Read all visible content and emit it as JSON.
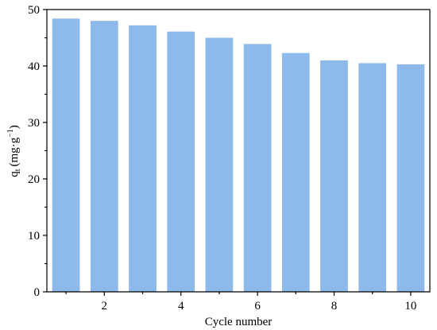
{
  "chart_data": {
    "type": "bar",
    "x": [
      1,
      2,
      3,
      4,
      5,
      6,
      7,
      8,
      9,
      10
    ],
    "values": [
      48.4,
      48.0,
      47.2,
      46.1,
      45.0,
      43.9,
      42.3,
      41.0,
      40.5,
      40.3
    ],
    "xticks": [
      2,
      4,
      6,
      8,
      10
    ],
    "xlim": [
      0.5,
      10.5
    ],
    "yticks": [
      0,
      10,
      20,
      30,
      40,
      50
    ],
    "ylim": [
      0,
      50
    ],
    "xlabel": "Cycle number",
    "ylabel": "q",
    "ylabel_sub": "t",
    "ylabel_unit": "(mg·g",
    "ylabel_sup": "−1",
    "ylabel_close": ")",
    "grid": false,
    "bar_color": "#8db9eb"
  }
}
